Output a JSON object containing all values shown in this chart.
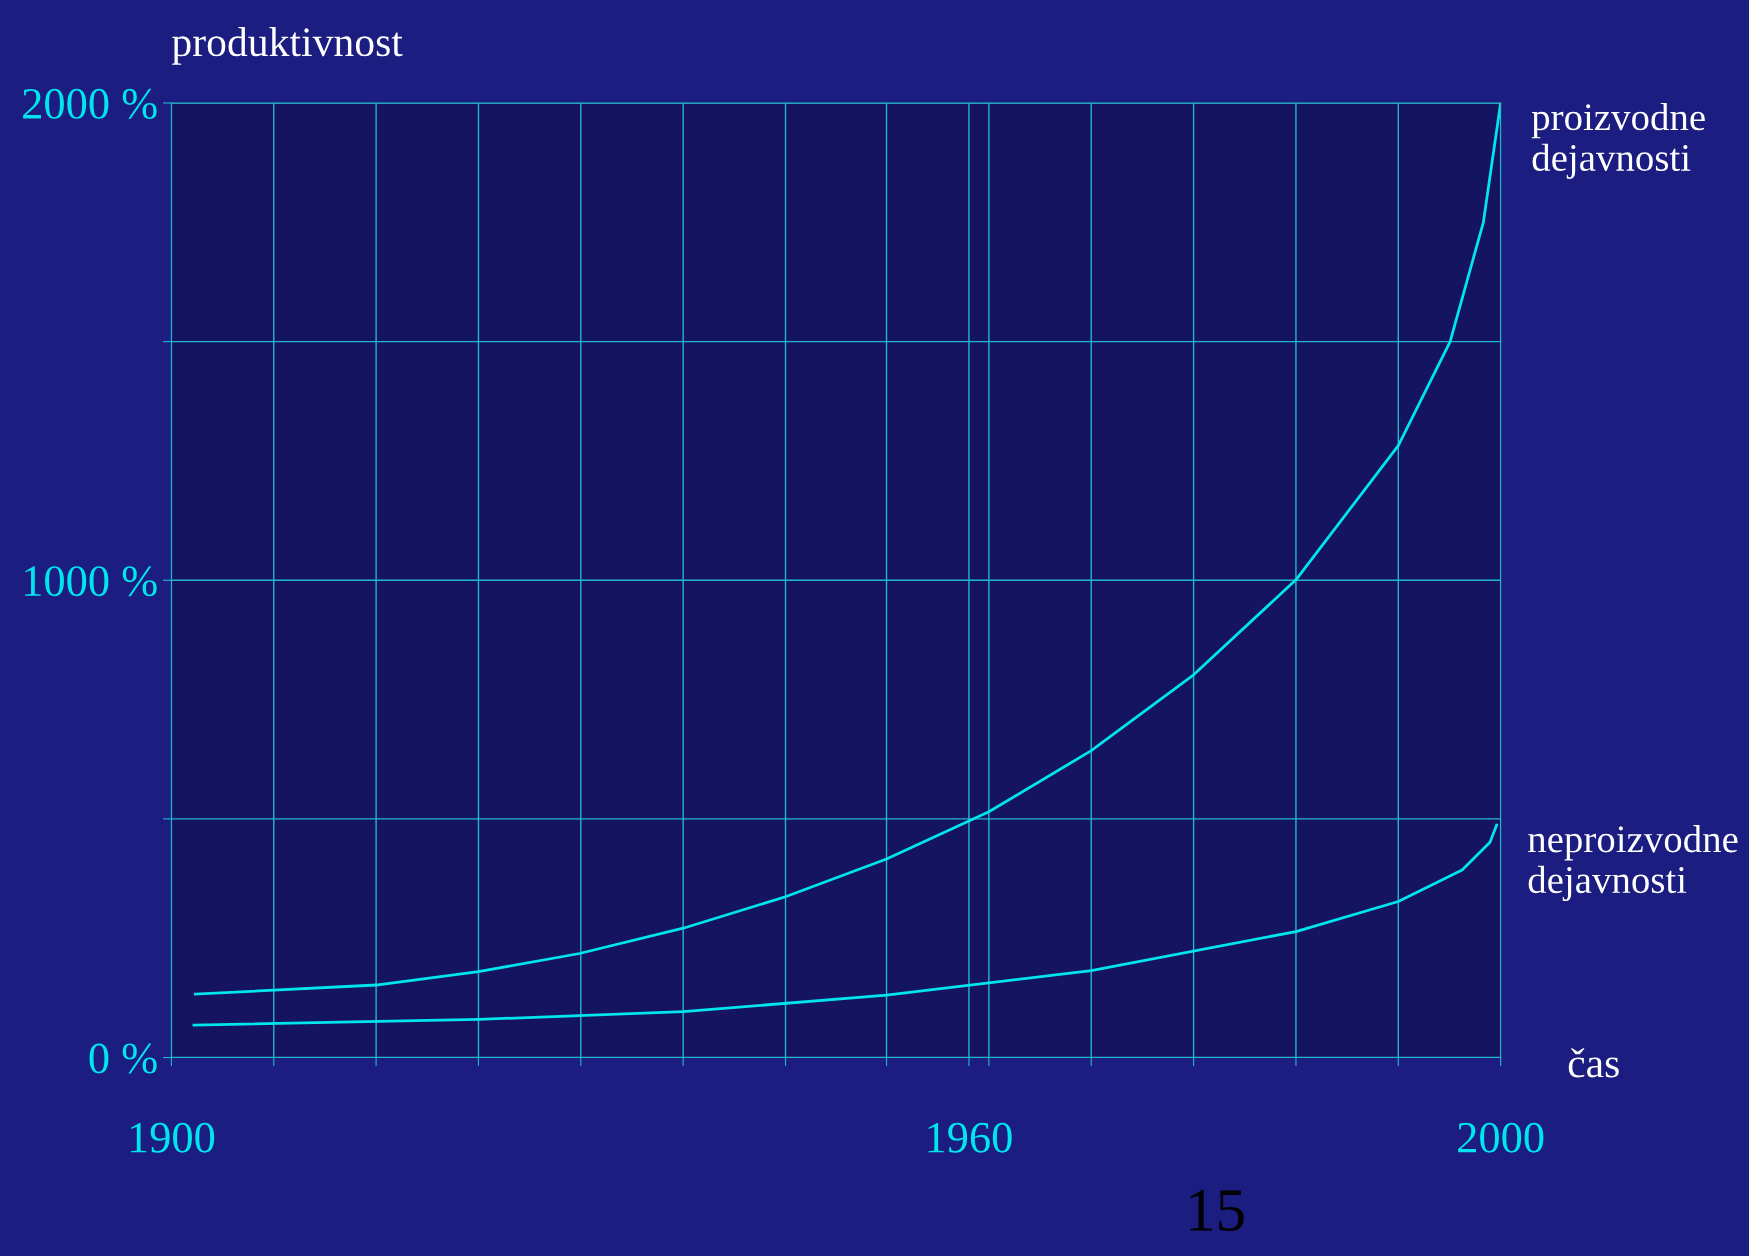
{
  "chart_data": {
    "type": "line",
    "ylabel": "produktivnost",
    "xlabel": "čas",
    "xlim": [
      1900,
      2000
    ],
    "ylim": [
      0,
      2000
    ],
    "xticks": [
      {
        "value": 1900,
        "label": "1900"
      },
      {
        "value": 1907.7,
        "label": null
      },
      {
        "value": 1915.4,
        "label": null
      },
      {
        "value": 1923.1,
        "label": null
      },
      {
        "value": 1930.8,
        "label": null
      },
      {
        "value": 1938.5,
        "label": null
      },
      {
        "value": 1946.2,
        "label": null
      },
      {
        "value": 1953.8,
        "label": null
      },
      {
        "value": 1960,
        "label": "1960"
      },
      {
        "value": 1961.5,
        "label": null
      },
      {
        "value": 1969.2,
        "label": null
      },
      {
        "value": 1976.9,
        "label": null
      },
      {
        "value": 1984.6,
        "label": null
      },
      {
        "value": 1992.3,
        "label": null
      },
      {
        "value": 2000,
        "label": "2000"
      }
    ],
    "yticks": [
      {
        "value": 0,
        "label": "0 %"
      },
      {
        "value": 500,
        "label": null
      },
      {
        "value": 1000,
        "label": "1000 %"
      },
      {
        "value": 1500,
        "label": null
      },
      {
        "value": 2000,
        "label": "2000 %"
      }
    ],
    "grid": true,
    "legend": false,
    "series": [
      {
        "name": "proizvodne dejavnosti",
        "color": "#00e5ee",
        "x": [
          1901.8,
          1915.4,
          1923.1,
          1930.7,
          1938.5,
          1946.2,
          1953.8,
          1961.5,
          1969.2,
          1976.9,
          1984.6,
          1992.3,
          1996.2,
          1998.7,
          2000
        ],
        "values": [
          133,
          152,
          180,
          218,
          271,
          337,
          416,
          515,
          643,
          802,
          1001,
          1282,
          1500,
          1750,
          2000
        ]
      },
      {
        "name": "neproizvodne dejavnosti",
        "color": "#00e5ee",
        "x": [
          1901.7,
          1923.1,
          1938.5,
          1953.8,
          1969.2,
          1984.6,
          1992.3,
          1997.1,
          1999.2,
          1999.7
        ],
        "values": [
          68,
          80,
          96,
          131,
          182,
          264,
          327,
          393,
          451,
          487
        ]
      }
    ],
    "annotations": [
      "15"
    ]
  }
}
